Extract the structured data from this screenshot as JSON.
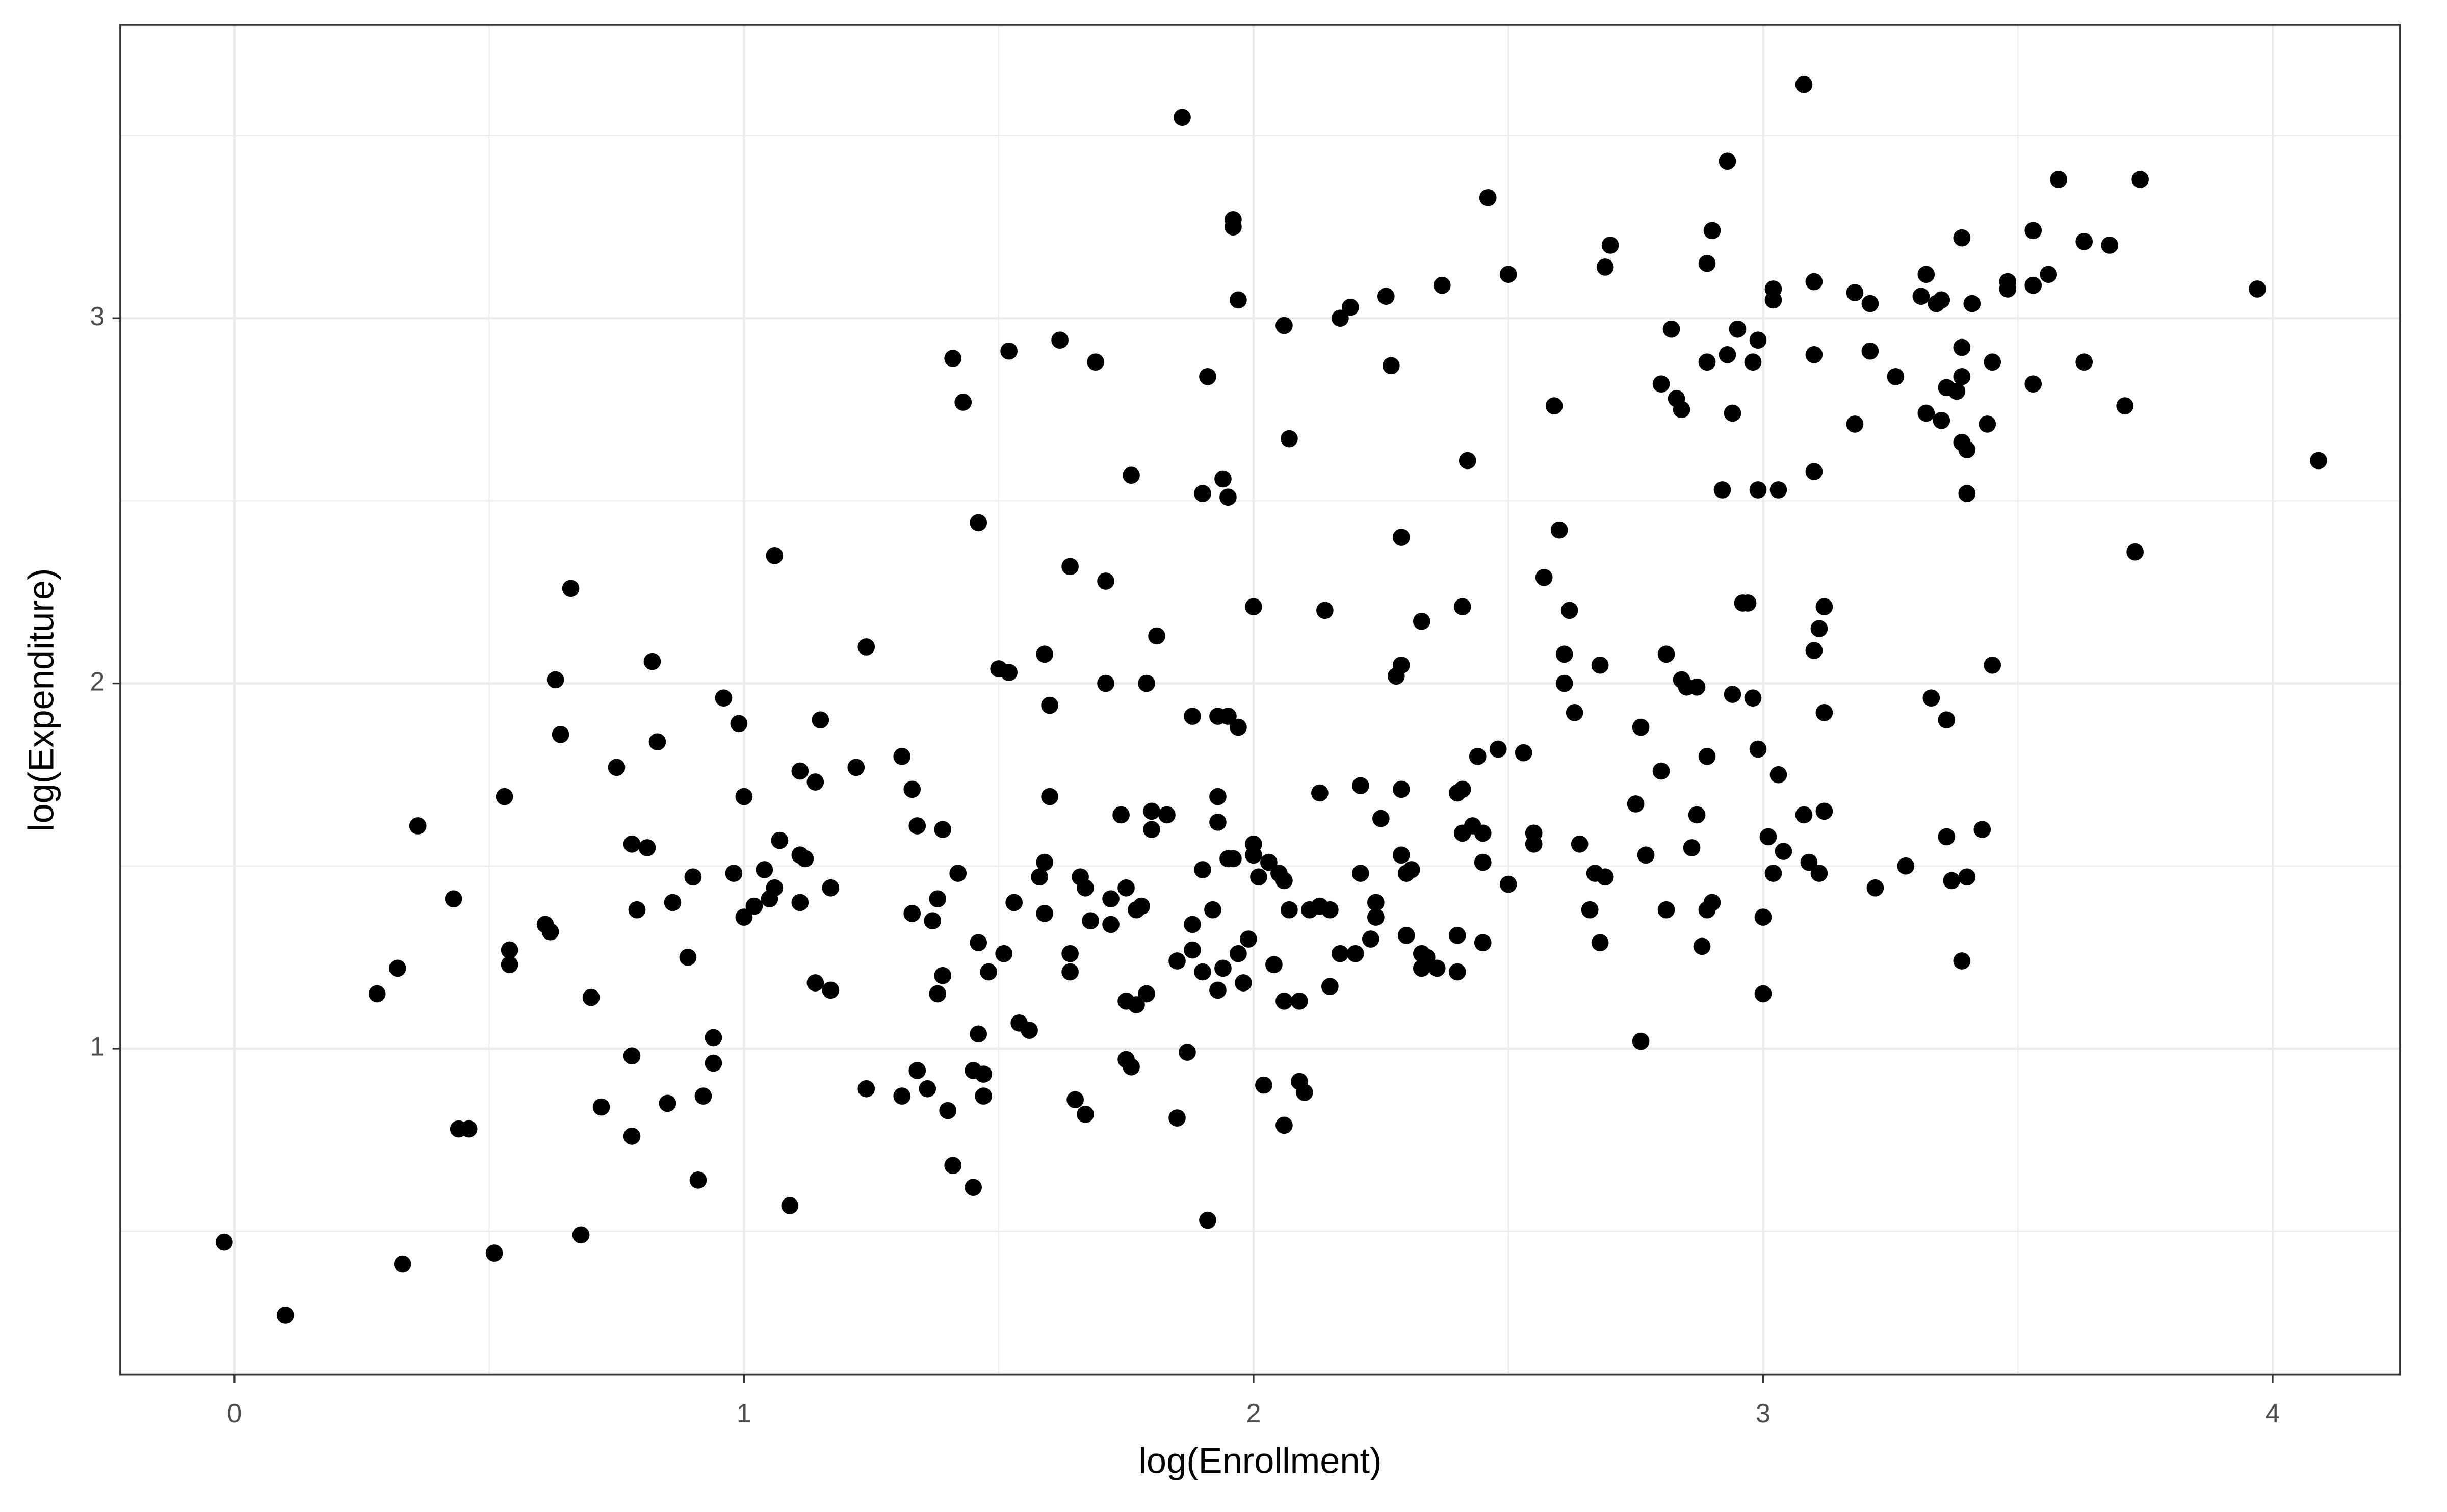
{
  "chart_data": {
    "type": "scatter",
    "x_label": "log(Enrollment)",
    "y_label": "log(Expenditure)",
    "color": "#000000",
    "grid": true,
    "xlim": [
      -0.224,
      4.25
    ],
    "ylim": [
      0.107,
      3.803
    ],
    "xticks": [
      0,
      1,
      2,
      3,
      4
    ],
    "yticks": [
      1,
      2,
      3
    ],
    "x_minor_gridlines": [
      0.5,
      1.5,
      2.5,
      3.5
    ],
    "y_minor_gridlines": [
      0.5,
      1.5,
      2.5,
      3.5
    ],
    "x": [
      -0.02,
      0.1,
      0.28,
      0.32,
      0.33,
      0.36,
      0.43,
      0.44,
      0.46,
      0.51,
      0.53,
      0.54,
      0.54,
      0.61,
      0.62,
      0.63,
      0.64,
      0.66,
      0.68,
      0.7,
      0.72,
      0.75,
      0.78,
      0.78,
      0.78,
      0.79,
      0.81,
      0.82,
      0.83,
      0.85,
      0.86,
      0.89,
      0.9,
      0.91,
      0.92,
      0.94,
      0.94,
      0.96,
      0.98,
      0.99,
      1.0,
      1.0,
      1.02,
      1.04,
      1.05,
      1.06,
      1.06,
      1.07,
      1.09,
      1.11,
      1.11,
      1.11,
      1.12,
      1.14,
      1.14,
      1.15,
      1.17,
      1.17,
      1.22,
      1.24,
      1.24,
      1.31,
      1.31,
      1.33,
      1.33,
      1.34,
      1.34,
      1.36,
      1.37,
      1.38,
      1.38,
      1.39,
      1.39,
      1.4,
      1.41,
      1.41,
      1.42,
      1.43,
      1.45,
      1.45,
      1.46,
      1.46,
      1.46,
      1.47,
      1.47,
      1.48,
      1.5,
      1.51,
      1.52,
      1.52,
      1.53,
      1.54,
      1.56,
      1.58,
      1.59,
      1.59,
      1.59,
      1.6,
      1.6,
      1.62,
      1.64,
      1.64,
      1.64,
      1.65,
      1.66,
      1.67,
      1.67,
      1.68,
      1.69,
      1.71,
      1.71,
      1.72,
      1.72,
      1.74,
      1.75,
      1.75,
      1.75,
      1.76,
      1.76,
      1.77,
      1.77,
      1.78,
      1.79,
      1.79,
      1.8,
      1.8,
      1.81,
      1.83,
      1.85,
      1.85,
      1.86,
      1.87,
      1.88,
      1.88,
      1.88,
      1.9,
      1.9,
      1.9,
      1.91,
      1.91,
      1.92,
      1.93,
      1.93,
      1.93,
      1.93,
      1.94,
      1.94,
      1.95,
      1.95,
      1.95,
      1.96,
      1.96,
      1.96,
      1.97,
      1.97,
      1.97,
      1.98,
      1.99,
      2.0,
      2.0,
      2.0,
      2.01,
      2.02,
      2.03,
      2.04,
      2.05,
      2.06,
      2.06,
      2.06,
      2.06,
      2.07,
      2.07,
      2.09,
      2.09,
      2.1,
      2.11,
      2.13,
      2.13,
      2.14,
      2.15,
      2.15,
      2.17,
      2.17,
      2.19,
      2.2,
      2.21,
      2.21,
      2.23,
      2.24,
      2.24,
      2.25,
      2.26,
      2.27,
      2.28,
      2.29,
      2.29,
      2.29,
      2.29,
      2.3,
      2.3,
      2.31,
      2.33,
      2.33,
      2.33,
      2.34,
      2.36,
      2.37,
      2.4,
      2.4,
      2.4,
      2.41,
      2.41,
      2.41,
      2.42,
      2.43,
      2.44,
      2.45,
      2.45,
      2.45,
      2.46,
      2.48,
      2.5,
      2.5,
      2.53,
      2.55,
      2.55,
      2.57,
      2.59,
      2.6,
      2.61,
      2.61,
      2.62,
      2.63,
      2.64,
      2.66,
      2.67,
      2.68,
      2.68,
      2.69,
      2.69,
      2.7,
      2.75,
      2.76,
      2.76,
      2.77,
      2.8,
      2.8,
      2.81,
      2.81,
      2.82,
      2.83,
      2.84,
      2.84,
      2.85,
      2.86,
      2.87,
      2.87,
      2.88,
      2.89,
      2.89,
      2.89,
      2.89,
      2.9,
      2.9,
      2.92,
      2.93,
      2.93,
      2.94,
      2.94,
      2.95,
      2.96,
      2.97,
      2.98,
      2.98,
      2.99,
      2.99,
      2.99,
      3.0,
      3.0,
      3.01,
      3.02,
      3.02,
      3.02,
      3.03,
      3.03,
      3.04,
      3.08,
      3.08,
      3.09,
      3.1,
      3.1,
      3.1,
      3.1,
      3.11,
      3.11,
      3.12,
      3.12,
      3.12,
      3.18,
      3.18,
      3.21,
      3.21,
      3.22,
      3.26,
      3.28,
      3.31,
      3.32,
      3.32,
      3.33,
      3.34,
      3.35,
      3.35,
      3.36,
      3.36,
      3.36,
      3.37,
      3.38,
      3.39,
      3.39,
      3.39,
      3.39,
      3.39,
      3.4,
      3.4,
      3.4,
      3.41,
      3.43,
      3.44,
      3.45,
      3.45,
      3.48,
      3.48,
      3.53,
      3.53,
      3.53,
      3.56,
      3.58,
      3.63,
      3.63,
      3.68,
      3.71,
      3.73,
      3.74,
      3.97,
      4.09
    ],
    "values": [
      0.47,
      0.27,
      1.15,
      1.22,
      0.41,
      1.61,
      1.41,
      0.78,
      0.78,
      0.44,
      1.69,
      1.27,
      1.23,
      1.34,
      1.32,
      2.01,
      1.86,
      2.26,
      0.49,
      1.14,
      0.84,
      1.77,
      0.76,
      0.98,
      1.56,
      1.38,
      1.55,
      2.06,
      1.84,
      0.85,
      1.4,
      1.25,
      1.47,
      0.64,
      0.87,
      1.03,
      0.96,
      1.96,
      1.48,
      1.89,
      1.69,
      1.36,
      1.39,
      1.49,
      1.41,
      1.44,
      2.35,
      1.57,
      0.57,
      1.53,
      1.4,
      1.76,
      1.52,
      1.73,
      1.18,
      1.9,
      1.16,
      1.44,
      1.77,
      0.89,
      2.1,
      1.8,
      0.87,
      1.71,
      1.37,
      0.94,
      1.61,
      0.89,
      1.35,
      1.15,
      1.41,
      1.6,
      1.2,
      0.83,
      0.68,
      2.89,
      1.48,
      2.77,
      0.94,
      0.62,
      1.04,
      1.29,
      2.44,
      0.87,
      0.93,
      1.21,
      2.04,
      1.26,
      2.03,
      2.91,
      1.4,
      1.07,
      1.05,
      1.47,
      1.51,
      1.37,
      2.08,
      1.94,
      1.69,
      2.94,
      2.32,
      1.26,
      1.21,
      0.86,
      1.47,
      1.44,
      0.82,
      1.35,
      2.88,
      2.28,
      2.0,
      1.41,
      1.34,
      1.64,
      1.44,
      0.97,
      1.13,
      2.57,
      0.95,
      1.38,
      1.12,
      1.39,
      2.0,
      1.15,
      1.65,
      1.6,
      2.13,
      1.64,
      1.24,
      0.81,
      3.55,
      0.99,
      1.34,
      1.27,
      1.91,
      2.52,
      1.49,
      1.21,
      2.84,
      0.53,
      1.38,
      1.91,
      1.62,
      1.16,
      1.69,
      2.56,
      1.22,
      1.52,
      1.91,
      2.51,
      3.25,
      3.27,
      1.52,
      1.88,
      3.05,
      1.26,
      1.18,
      1.3,
      1.56,
      2.21,
      1.53,
      1.47,
      0.9,
      1.51,
      1.23,
      1.48,
      2.98,
      1.13,
      0.79,
      1.46,
      2.67,
      1.38,
      0.91,
      1.13,
      0.88,
      1.38,
      1.7,
      1.39,
      2.2,
      1.38,
      1.17,
      3.0,
      1.26,
      3.03,
      1.26,
      1.48,
      1.72,
      1.3,
      1.36,
      1.4,
      1.63,
      3.06,
      2.87,
      2.02,
      2.4,
      2.05,
      1.71,
      1.53,
      1.48,
      1.31,
      1.49,
      1.22,
      2.17,
      1.26,
      1.25,
      1.22,
      3.09,
      1.31,
      1.7,
      1.21,
      2.21,
      1.71,
      1.59,
      2.61,
      1.61,
      1.8,
      1.51,
      1.29,
      1.59,
      3.33,
      1.82,
      3.12,
      1.45,
      1.81,
      1.59,
      1.56,
      2.29,
      2.76,
      2.42,
      2.08,
      2.0,
      2.2,
      1.92,
      1.56,
      1.38,
      1.48,
      1.29,
      2.05,
      1.47,
      3.14,
      3.2,
      1.67,
      1.88,
      1.02,
      1.53,
      1.76,
      2.82,
      2.08,
      1.38,
      2.97,
      2.78,
      2.75,
      2.01,
      1.99,
      1.55,
      1.64,
      1.99,
      1.28,
      3.15,
      1.38,
      2.88,
      1.8,
      1.4,
      3.24,
      2.53,
      2.9,
      3.43,
      1.97,
      2.74,
      2.97,
      2.22,
      2.22,
      2.88,
      1.96,
      2.94,
      2.53,
      1.82,
      1.36,
      1.15,
      1.58,
      3.05,
      3.08,
      1.48,
      2.53,
      1.75,
      1.54,
      3.64,
      1.64,
      1.51,
      3.1,
      2.09,
      2.9,
      2.58,
      1.48,
      2.15,
      1.65,
      2.21,
      1.92,
      2.71,
      3.07,
      2.91,
      3.04,
      1.44,
      2.84,
      1.5,
      3.06,
      2.74,
      3.12,
      1.96,
      3.04,
      2.72,
      3.05,
      2.81,
      1.58,
      1.9,
      1.46,
      2.8,
      2.92,
      3.22,
      2.84,
      2.66,
      1.24,
      2.52,
      1.47,
      2.64,
      3.04,
      1.6,
      2.71,
      2.88,
      2.05,
      3.08,
      3.1,
      3.24,
      2.82,
      3.09,
      3.12,
      3.38,
      2.88,
      3.21,
      3.2,
      2.76,
      2.36,
      3.38,
      3.08,
      2.61
    ]
  }
}
